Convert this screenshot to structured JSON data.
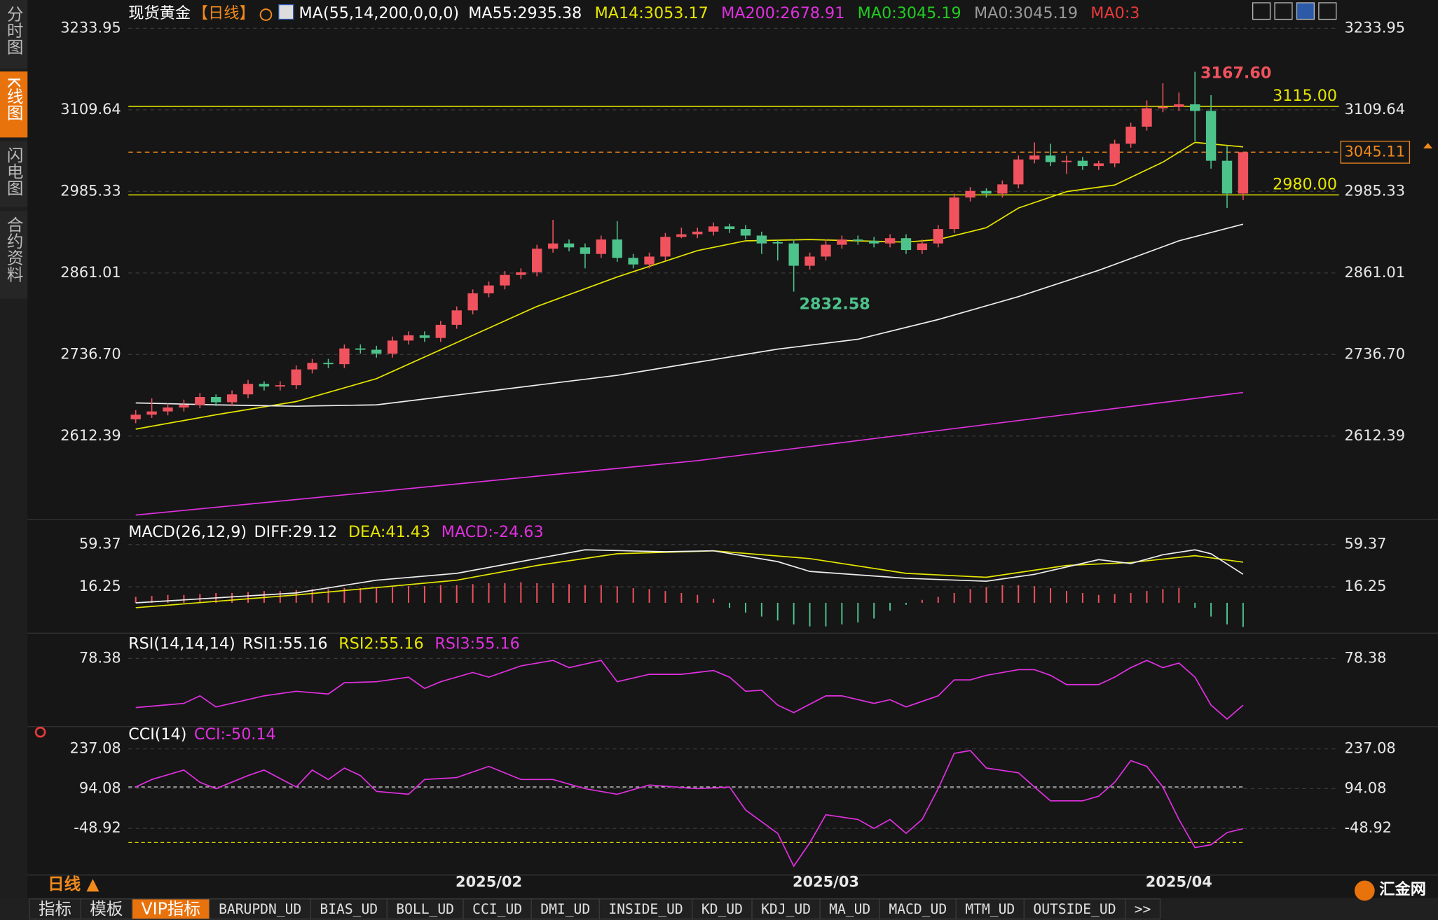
{
  "sidebar": {
    "tabs": [
      "分时图",
      "K线图",
      "闪电图",
      "合约资料"
    ],
    "active": 1
  },
  "header": {
    "symbol": "现货黄金",
    "period": "【日线】",
    "ma_params": "MA(55,14,200,0,0,0)",
    "items": [
      {
        "text": "MA55:2935.38",
        "color": "#ffffff"
      },
      {
        "text": "MA14:3053.17",
        "color": "#e6e600"
      },
      {
        "text": "MA200:2678.91",
        "color": "#e030e0"
      },
      {
        "text": "MA0:3045.19",
        "color": "#22cc22"
      },
      {
        "text": "MA0:3045.19",
        "color": "#9a9a9a"
      },
      {
        "text": "MA0:3",
        "color": "#e83a3a"
      }
    ]
  },
  "price_panel": {
    "ylim": [
      2488,
      3263
    ],
    "yticks": [
      3233.95,
      3109.64,
      2985.33,
      2861.01,
      {
        "value": 2736.7,
        "label": "2736.70"
      },
      2612.39
    ],
    "up_color": "#f0525e",
    "down_color": "#4dc38b",
    "candles": [
      [
        2638,
        2652,
        2632,
        2645
      ],
      [
        2645,
        2670,
        2640,
        2650
      ],
      [
        2650,
        2662,
        2644,
        2656
      ],
      [
        2656,
        2668,
        2650,
        2660
      ],
      [
        2660,
        2678,
        2655,
        2672
      ],
      [
        2672,
        2676,
        2658,
        2664
      ],
      [
        2664,
        2682,
        2658,
        2676
      ],
      [
        2676,
        2698,
        2670,
        2692
      ],
      [
        2692,
        2696,
        2682,
        2688
      ],
      [
        2688,
        2696,
        2682,
        2690
      ],
      [
        2690,
        2720,
        2684,
        2714
      ],
      [
        2714,
        2730,
        2708,
        2724
      ],
      [
        2724,
        2730,
        2716,
        2722
      ],
      [
        2722,
        2752,
        2716,
        2746
      ],
      [
        2746,
        2752,
        2738,
        2744
      ],
      [
        2744,
        2750,
        2732,
        2738
      ],
      [
        2738,
        2764,
        2732,
        2758
      ],
      [
        2758,
        2772,
        2752,
        2766
      ],
      [
        2766,
        2772,
        2756,
        2762
      ],
      [
        2762,
        2788,
        2756,
        2782
      ],
      [
        2782,
        2810,
        2776,
        2804
      ],
      [
        2804,
        2836,
        2798,
        2830
      ],
      [
        2830,
        2848,
        2824,
        2842
      ],
      [
        2842,
        2864,
        2836,
        2858
      ],
      [
        2858,
        2868,
        2852,
        2862
      ],
      [
        2862,
        2904,
        2856,
        2898
      ],
      [
        2898,
        2942,
        2892,
        2906
      ],
      [
        2906,
        2912,
        2894,
        2900
      ],
      [
        2900,
        2906,
        2868,
        2890
      ],
      [
        2890,
        2918,
        2884,
        2912
      ],
      [
        2912,
        2940,
        2878,
        2884
      ],
      [
        2884,
        2890,
        2868,
        2874
      ],
      [
        2874,
        2892,
        2868,
        2886
      ],
      [
        2886,
        2922,
        2880,
        2916
      ],
      [
        2916,
        2930,
        2914,
        2920
      ],
      [
        2920,
        2930,
        2914,
        2924
      ],
      [
        2924,
        2938,
        2918,
        2932
      ],
      [
        2932,
        2936,
        2922,
        2928
      ],
      [
        2928,
        2934,
        2912,
        2918
      ],
      [
        2918,
        2924,
        2890,
        2906
      ],
      [
        2908,
        2912,
        2880,
        2906
      ],
      [
        2906,
        2912,
        2832.58,
        2872
      ],
      [
        2872,
        2892,
        2866,
        2886
      ],
      [
        2886,
        2912,
        2880,
        2904
      ],
      [
        2904,
        2918,
        2898,
        2912
      ],
      [
        2912,
        2918,
        2904,
        2910
      ],
      [
        2910,
        2916,
        2900,
        2906
      ],
      [
        2906,
        2920,
        2900,
        2914
      ],
      [
        2914,
        2920,
        2890,
        2896
      ],
      [
        2896,
        2912,
        2890,
        2906
      ],
      [
        2906,
        2934,
        2900,
        2928
      ],
      [
        2928,
        2982,
        2922,
        2976
      ],
      [
        2976,
        2992,
        2970,
        2986
      ],
      [
        2986,
        2990,
        2976,
        2982
      ],
      [
        2982,
        3002,
        2976,
        2996
      ],
      [
        2996,
        3040,
        2990,
        3034
      ],
      [
        3034,
        3060,
        3028,
        3040
      ],
      [
        3040,
        3058,
        3024,
        3030
      ],
      [
        3030,
        3040,
        3012,
        3032
      ],
      [
        3032,
        3038,
        3018,
        3024
      ],
      [
        3024,
        3032,
        3018,
        3028
      ],
      [
        3028,
        3064,
        3022,
        3058
      ],
      [
        3058,
        3090,
        3052,
        3084
      ],
      [
        3084,
        3124,
        3078,
        3112
      ],
      [
        3112,
        3150,
        3106,
        3114
      ],
      [
        3114,
        3136,
        3108,
        3118
      ],
      [
        3118,
        3167.6,
        3062,
        3108
      ],
      [
        3108,
        3132,
        3020,
        3032
      ],
      [
        3032,
        3054,
        2960,
        2982
      ],
      [
        2982,
        3046,
        2972,
        3045.11
      ]
    ],
    "ma_lines": [
      {
        "name": "MA14",
        "color": "#e6e600",
        "x": [
          0,
          5,
          10,
          15,
          20,
          25,
          30,
          35,
          38,
          42,
          48,
          50,
          53,
          55,
          58,
          61,
          64,
          66,
          69
        ],
        "values": [
          2623,
          2645,
          2665,
          2700,
          2755,
          2810,
          2855,
          2895,
          2910,
          2912,
          2908,
          2912,
          2930,
          2960,
          2985,
          2995,
          3030,
          3060,
          3053.17
        ]
      },
      {
        "name": "MA55",
        "color": "#eeeeee",
        "x": [
          0,
          5,
          10,
          15,
          20,
          25,
          30,
          35,
          40,
          45,
          50,
          55,
          60,
          65,
          69
        ],
        "values": [
          2663,
          2660,
          2658,
          2660,
          2675,
          2690,
          2705,
          2725,
          2745,
          2760,
          2790,
          2825,
          2865,
          2910,
          2935.38
        ]
      },
      {
        "name": "MA200",
        "color": "#e030e0",
        "x": [
          0,
          35,
          69
        ],
        "values": [
          2492,
          2575,
          2678.91
        ]
      }
    ],
    "levels": [
      {
        "value": 3115,
        "label": "3115.00",
        "color": "#e6e600"
      },
      {
        "value": 2980,
        "label": "2980.00",
        "color": "#e6e600"
      }
    ],
    "last_price": {
      "value": 3045.11,
      "label": "3045.11",
      "color": "#f08a1c"
    },
    "high": {
      "index": 66,
      "value": 3167.6,
      "label": "3167.60",
      "color": "#f0525e"
    },
    "low": {
      "index": 41,
      "value": 2832.58,
      "color": "#4dc38b"
    }
  },
  "macd_panel": {
    "title": "MACD(26,12,9)",
    "items": [
      {
        "text": "DIFF:29.12",
        "color": "#ffffff"
      },
      {
        "text": "DEA:41.43",
        "color": "#e6e600"
      },
      {
        "text": "MACD:-24.63",
        "color": "#e030e0"
      }
    ],
    "ylim": [
      -30,
      82
    ],
    "yticks": [
      59.37,
      16.25
    ],
    "diff": {
      "color": "#eeeeee",
      "x": [
        0,
        10,
        15,
        20,
        25,
        28,
        33,
        36,
        40,
        42,
        48,
        53,
        56,
        60,
        62,
        64,
        66,
        67,
        69
      ],
      "values": [
        0,
        10,
        23,
        30,
        45,
        54,
        52,
        53,
        42,
        32,
        25,
        22,
        29,
        44,
        40,
        49,
        54,
        50,
        29.12
      ]
    },
    "dea": {
      "color": "#e6e600",
      "x": [
        0,
        10,
        20,
        25,
        30,
        36,
        42,
        48,
        53,
        58,
        62,
        66,
        69
      ],
      "values": [
        -5,
        8,
        23,
        38,
        50,
        53,
        45,
        30,
        26,
        38,
        41,
        48,
        41.43
      ]
    },
    "hist": [
      6,
      7,
      8,
      8,
      9,
      10,
      10,
      11,
      12,
      12,
      13,
      14,
      14,
      15,
      15,
      16,
      16,
      17,
      17,
      18,
      18,
      19,
      20,
      20,
      21,
      20,
      20,
      19,
      18,
      18,
      17,
      15,
      14,
      12,
      10,
      8,
      4,
      -5,
      -10,
      -14,
      -18,
      -22,
      -24,
      -24,
      -22,
      -20,
      -16,
      -8,
      -2,
      3,
      6,
      10,
      14,
      16,
      18,
      18,
      17,
      15,
      12,
      10,
      8,
      9,
      10,
      12,
      14,
      15,
      -5,
      -14,
      -22,
      -24.63
    ]
  },
  "rsi_panel": {
    "title": "RSI(14,14,14)",
    "items": [
      {
        "text": "RSI1:55.16",
        "color": "#ffffff"
      },
      {
        "text": "RSI2:55.16",
        "color": "#e6e600"
      },
      {
        "text": "RSI3:55.16",
        "color": "#e030e0"
      }
    ],
    "ylim": [
      45.9,
      90
    ],
    "yticks": [
      78.38
    ],
    "line": {
      "color": "#e030e0",
      "x": [
        0,
        3,
        4,
        5,
        8,
        10,
        12,
        13,
        15,
        17,
        18,
        19,
        21,
        22,
        24,
        26,
        27,
        29,
        30,
        32,
        34,
        36,
        37,
        38,
        39,
        40,
        41,
        43,
        44,
        46,
        47,
        48,
        50,
        51,
        52,
        53,
        55,
        56,
        57,
        58,
        60,
        61,
        62,
        63,
        64,
        65,
        66,
        67,
        68,
        69
      ],
      "values": [
        54,
        56.1,
        59.8,
        54.3,
        59.8,
        62.1,
        60.7,
        66.3,
        66.8,
        69.1,
        63.5,
        66.8,
        71.4,
        69.1,
        74.7,
        77.4,
        73.8,
        77.4,
        66.8,
        70.5,
        70.5,
        72.4,
        69.1,
        62.1,
        62.6,
        55.2,
        51.5,
        59.8,
        59.8,
        56.1,
        57.9,
        54.3,
        59.8,
        67.7,
        67.7,
        70,
        72.8,
        72.8,
        70,
        65.4,
        65.4,
        69.1,
        73.8,
        77.4,
        73.8,
        76.1,
        69.1,
        55.2,
        48.3,
        55.16
      ]
    }
  },
  "cci_panel": {
    "title": "CCI(14)",
    "items": [
      {
        "text": "CCI:-50.14",
        "color": "#e030e0"
      }
    ],
    "ylim": [
      -217,
      304
    ],
    "yticks": [
      237.08,
      94.08,
      -48.92
    ],
    "ref_lines": [
      {
        "value": 100,
        "color": "#dddddd"
      },
      {
        "value": -100,
        "color": "#d8d800"
      }
    ],
    "line": {
      "color": "#e030e0",
      "x": [
        0,
        1,
        3,
        4,
        5,
        7,
        8,
        10,
        11,
        12,
        13,
        14,
        15,
        17,
        18,
        20,
        22,
        24,
        26,
        28,
        30,
        32,
        35,
        37,
        38,
        40,
        41,
        42,
        43,
        45,
        46,
        47,
        48,
        49,
        50,
        51,
        52,
        53,
        55,
        56,
        57,
        59,
        60,
        61,
        62,
        63,
        64,
        65,
        66,
        67,
        68,
        69
      ],
      "values": [
        100,
        127,
        161,
        117,
        94,
        141,
        161,
        100,
        161,
        127,
        168,
        141,
        84,
        74,
        127,
        134,
        174,
        127,
        127,
        94,
        74,
        107,
        94,
        100,
        17,
        -67,
        -185,
        -101,
        0,
        -17,
        -49,
        -17,
        -67,
        -17,
        94,
        221,
        231,
        168,
        151,
        100,
        50,
        50,
        67,
        117,
        195,
        174,
        100,
        -17,
        -118,
        -108,
        -64,
        -50.14
      ]
    }
  },
  "time_ticks": [
    {
      "value": 22,
      "label": "2025/02"
    },
    {
      "value": 43,
      "label": "2025/03"
    },
    {
      "value": 65,
      "label": "2025/04"
    }
  ],
  "period_button": "日线 ▲",
  "tabs": {
    "items": [
      "指标",
      "模板",
      "VIP指标",
      "BARUPDN_UD",
      "BIAS_UD",
      "BOLL_UD",
      "CCI_UD",
      "DMI_UD",
      "INSIDE_UD",
      "KD_UD",
      "KDJ_UD",
      "MA_UD",
      "MACD_UD",
      "MTM_UD",
      "OUTSIDE_UD",
      ">>"
    ],
    "active": 2
  },
  "logo": "汇金网"
}
